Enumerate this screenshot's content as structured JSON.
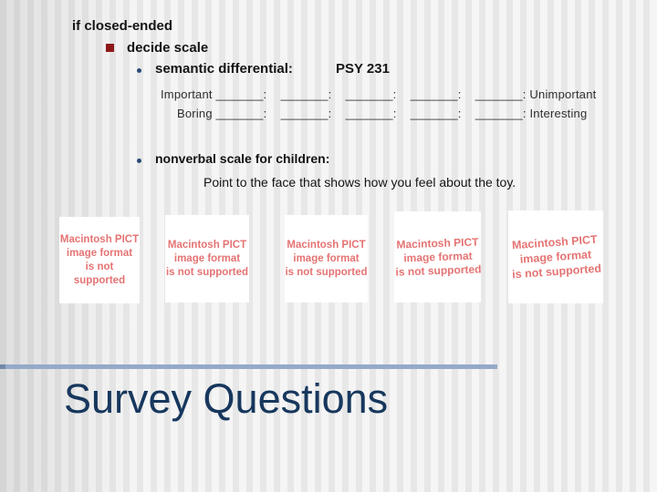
{
  "slide": {
    "title": "Survey Questions",
    "body": {
      "heading": "if closed-ended",
      "bullet_decide": "decide scale",
      "bullet_semantic": "semantic differential:",
      "course_code": "PSY 231",
      "scale_row_important": "Important _______:    _______:    _______:    _______:    _______: Unimportant",
      "scale_row_boring": "Boring _______:    _______:    _______:    _______:    _______: Interesting",
      "bullet_nonverbal": "nonverbal scale for children:",
      "nonverbal_instruction": "Point to the face that shows how you feel about the toy."
    },
    "image_placeholders": {
      "count": 5,
      "lines": [
        "Macintosh PICT",
        "image format",
        "is not supported"
      ]
    },
    "colors": {
      "title_text": "#17375d",
      "divider": "#94aac8",
      "divider_left_cap": "#7288ab",
      "square_bullet": "#8e1818",
      "dot_bullet": "#2a4a77",
      "placeholder_text": "#e57373",
      "body_text": "#141414",
      "background_stripe_dark": "#e7e7e7",
      "background_stripe_light": "#f5f5f5"
    }
  }
}
